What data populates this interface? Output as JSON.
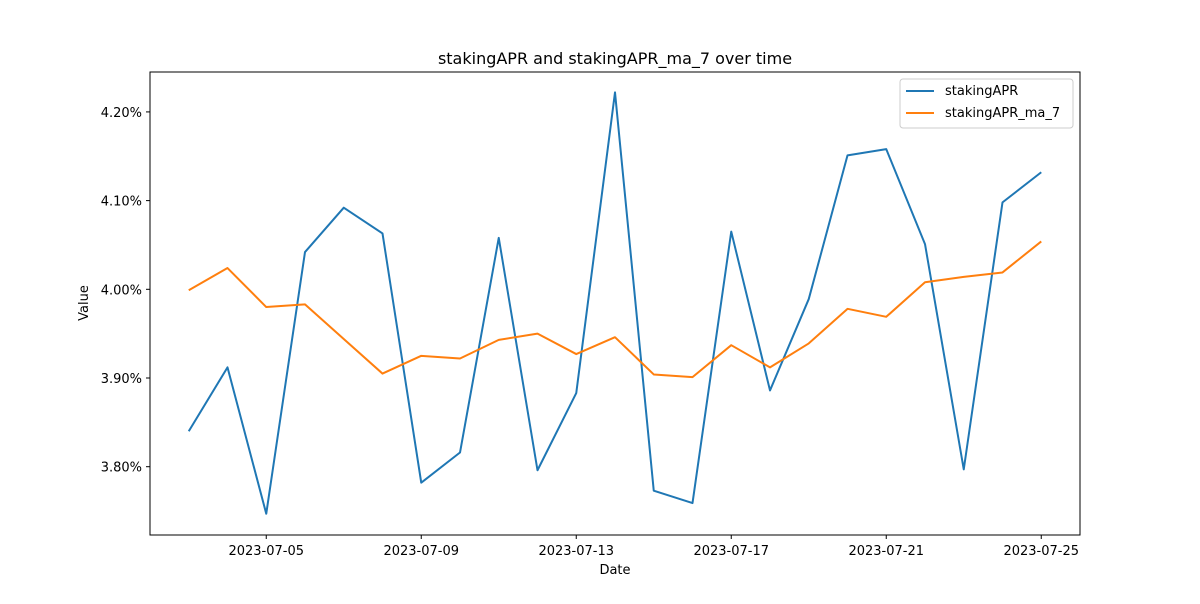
{
  "chart_data": {
    "type": "line",
    "title": "stakingAPR and stakingAPR_ma_7 over time",
    "xlabel": "Date",
    "ylabel": "Value",
    "x": [
      "2023-07-03",
      "2023-07-04",
      "2023-07-05",
      "2023-07-06",
      "2023-07-07",
      "2023-07-08",
      "2023-07-09",
      "2023-07-10",
      "2023-07-11",
      "2023-07-12",
      "2023-07-13",
      "2023-07-14",
      "2023-07-15",
      "2023-07-16",
      "2023-07-17",
      "2023-07-18",
      "2023-07-19",
      "2023-07-20",
      "2023-07-21",
      "2023-07-22",
      "2023-07-23",
      "2023-07-24",
      "2023-07-25"
    ],
    "xlim": [
      "2023-07-02T00:00",
      "2023-07-26T00:00"
    ],
    "ylim": [
      3.723,
      4.245
    ],
    "x_ticks": [
      {
        "date": "2023-07-05",
        "label": "2023-07-05"
      },
      {
        "date": "2023-07-09",
        "label": "2023-07-09"
      },
      {
        "date": "2023-07-13",
        "label": "2023-07-13"
      },
      {
        "date": "2023-07-17",
        "label": "2023-07-17"
      },
      {
        "date": "2023-07-21",
        "label": "2023-07-21"
      },
      {
        "date": "2023-07-25",
        "label": "2023-07-25"
      }
    ],
    "y_ticks": [
      {
        "value": 3.8,
        "label": "3.80%"
      },
      {
        "value": 3.9,
        "label": "3.90%"
      },
      {
        "value": 4.0,
        "label": "4.00%"
      },
      {
        "value": 4.1,
        "label": "4.10%"
      },
      {
        "value": 4.2,
        "label": "4.20%"
      }
    ],
    "series": [
      {
        "name": "stakingAPR",
        "color": "#1f77b4",
        "values": [
          3.84,
          3.912,
          3.747,
          4.042,
          4.092,
          4.063,
          3.782,
          3.816,
          4.058,
          3.796,
          3.883,
          4.222,
          3.773,
          3.759,
          4.065,
          3.886,
          3.989,
          4.151,
          4.158,
          4.051,
          3.797,
          4.098,
          4.132
        ]
      },
      {
        "name": "stakingAPR_ma_7",
        "color": "#ff7f0e",
        "values": [
          3.999,
          4.024,
          3.98,
          3.983,
          3.944,
          3.905,
          3.925,
          3.922,
          3.943,
          3.95,
          3.927,
          3.946,
          3.904,
          3.901,
          3.937,
          3.912,
          3.939,
          3.978,
          3.969,
          4.008,
          4.014,
          4.019,
          4.054
        ]
      }
    ],
    "grid": false,
    "legend_position": "top-right"
  }
}
